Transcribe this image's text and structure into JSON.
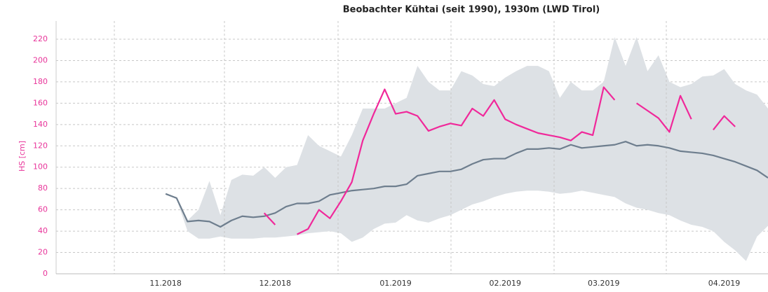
{
  "chart_data": {
    "type": "line",
    "title": "Beobachter Kühtai (seit 1990), 1930m (LWD Tirol)",
    "y_label": "HS [cm]",
    "categories": [
      null,
      null,
      null,
      null,
      null,
      null,
      null,
      null,
      null,
      null,
      "11.2018",
      null,
      null,
      null,
      null,
      null,
      null,
      null,
      null,
      null,
      "12.2018",
      null,
      null,
      null,
      null,
      null,
      null,
      null,
      null,
      null,
      null,
      "01.2019",
      null,
      null,
      null,
      null,
      null,
      null,
      null,
      null,
      null,
      "02.2019",
      null,
      null,
      null,
      null,
      null,
      null,
      null,
      null,
      "03.2019",
      null,
      null,
      null,
      null,
      null,
      null,
      null,
      null,
      null,
      null,
      "04.2019",
      null,
      null,
      null,
      null
    ],
    "band": {
      "color": "#dde1e5",
      "upper": [
        null,
        null,
        null,
        null,
        null,
        null,
        null,
        null,
        null,
        null,
        75,
        72,
        50,
        60,
        87,
        55,
        88,
        93,
        92,
        100,
        90,
        100,
        102,
        130,
        120,
        115,
        110,
        130,
        155,
        155,
        155,
        160,
        165,
        195,
        180,
        172,
        172,
        190,
        186,
        178,
        176,
        184,
        190,
        195,
        195,
        190,
        165,
        180,
        172,
        172,
        180,
        222,
        195,
        222,
        190,
        205,
        180,
        175,
        178,
        185,
        186,
        192,
        178,
        172,
        168,
        155
      ],
      "lower": [
        null,
        null,
        null,
        null,
        null,
        null,
        null,
        null,
        null,
        null,
        75,
        70,
        40,
        33,
        33,
        35,
        33,
        33,
        33,
        34,
        34,
        35,
        36,
        38,
        39,
        40,
        38,
        30,
        34,
        42,
        47,
        48,
        55,
        50,
        48,
        52,
        55,
        60,
        65,
        68,
        72,
        75,
        77,
        78,
        78,
        77,
        75,
        76,
        78,
        76,
        74,
        72,
        66,
        62,
        60,
        57,
        55,
        50,
        46,
        44,
        40,
        30,
        22,
        12,
        35,
        45
      ]
    },
    "series": [
      {
        "color": "#6e7e8e",
        "values": [
          null,
          null,
          null,
          null,
          null,
          null,
          null,
          null,
          null,
          null,
          75,
          71,
          49,
          50,
          49,
          44,
          50,
          54,
          53,
          54,
          57,
          63,
          66,
          66,
          68,
          74,
          76,
          78,
          79,
          80,
          82,
          82,
          84,
          92,
          94,
          96,
          96,
          98,
          103,
          107,
          108,
          108,
          113,
          117,
          117,
          118,
          117,
          121,
          118,
          119,
          120,
          121,
          124,
          120,
          121,
          120,
          118,
          115,
          114,
          113,
          111,
          108,
          105,
          101,
          97,
          90
        ]
      },
      {
        "color": "#f0289a",
        "values": [
          null,
          null,
          null,
          null,
          null,
          null,
          null,
          null,
          null,
          null,
          null,
          null,
          null,
          null,
          null,
          null,
          null,
          null,
          null,
          57,
          46,
          null,
          37,
          42,
          60,
          52,
          68,
          86,
          125,
          150,
          173,
          150,
          152,
          148,
          134,
          138,
          141,
          139,
          155,
          148,
          163,
          145,
          140,
          136,
          132,
          130,
          128,
          125,
          133,
          130,
          175,
          163,
          null,
          160,
          153,
          146,
          133,
          167,
          145,
          null,
          135,
          148,
          138,
          null,
          null,
          null
        ]
      }
    ],
    "ylim": [
      0,
      230
    ],
    "yticks": [
      0,
      20,
      40,
      60,
      80,
      100,
      120,
      140,
      160,
      180,
      200,
      220
    ],
    "grid": true
  }
}
